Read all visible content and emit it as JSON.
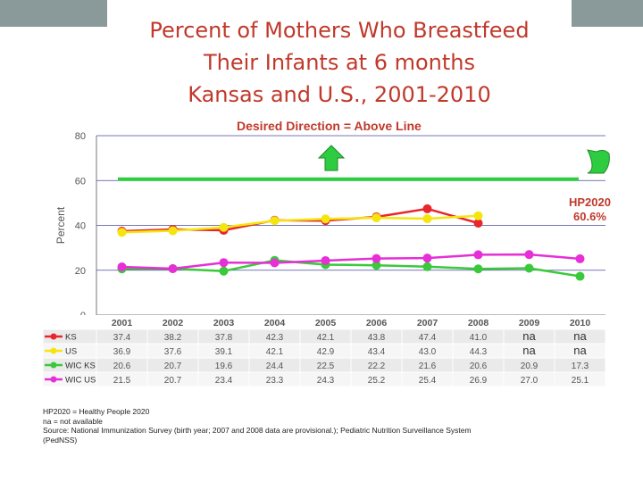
{
  "title_lines": [
    "Percent of Mothers Who Breastfeed",
    "Their Infants at 6 months",
    "Kansas and U.S., 2001-2010"
  ],
  "desired_direction": "Desired Direction = Above Line",
  "hp_label": [
    "HP2020",
    "60.6%"
  ],
  "footnotes": [
    "HP2020 = Healthy People 2020",
    "na = not available",
    "Source: National Immunization Survey (birth year; 2007 and 2008 data are provisional.); Pediatric Nutrition Surveillance System",
    "(PedNSS)"
  ],
  "chart_data": {
    "type": "line",
    "title": "Percent of Mothers Who Breastfeed Their Infants at 6 months Kansas and U.S., 2001-2010",
    "ylabel": "Percent",
    "xlabel": "",
    "ylim": [
      0,
      80
    ],
    "yticks": [
      "0",
      "20",
      "40",
      "60",
      "80"
    ],
    "categories": [
      "2001",
      "2002",
      "2003",
      "2004",
      "2005",
      "2006",
      "2007",
      "2008",
      "2009",
      "2010"
    ],
    "target_line": {
      "name": "HP2020",
      "value": 60.6,
      "color": "#2ecc40"
    },
    "series": [
      {
        "name": "KS",
        "color": "#e8262b",
        "values": [
          37.4,
          38.2,
          37.8,
          42.3,
          42.1,
          43.8,
          47.4,
          41.0,
          null,
          null
        ],
        "table": [
          "37.4",
          "38.2",
          "37.8",
          "42.3",
          "42.1",
          "43.8",
          "47.4",
          "41.0",
          "na",
          "na"
        ]
      },
      {
        "name": "US",
        "color": "#f5e50f",
        "values": [
          36.9,
          37.6,
          39.1,
          42.1,
          42.9,
          43.4,
          43.0,
          44.3,
          null,
          null
        ],
        "table": [
          "36.9",
          "37.6",
          "39.1",
          "42.1",
          "42.9",
          "43.4",
          "43.0",
          "44.3",
          "na",
          "na"
        ]
      },
      {
        "name": "WIC KS",
        "color": "#3ac93a",
        "values": [
          20.6,
          20.7,
          19.6,
          24.4,
          22.5,
          22.2,
          21.6,
          20.6,
          20.9,
          17.3
        ],
        "table": [
          "20.6",
          "20.7",
          "19.6",
          "24.4",
          "22.5",
          "22.2",
          "21.6",
          "20.6",
          "20.9",
          "17.3"
        ]
      },
      {
        "name": "WIC US",
        "color": "#e62fd6",
        "values": [
          21.5,
          20.7,
          23.4,
          23.3,
          24.3,
          25.2,
          25.4,
          26.9,
          27.0,
          25.1
        ],
        "table": [
          "21.5",
          "20.7",
          "23.4",
          "23.3",
          "24.3",
          "25.2",
          "25.4",
          "26.9",
          "27.0",
          "25.1"
        ]
      }
    ],
    "grid": false,
    "legend": "table below chart"
  }
}
